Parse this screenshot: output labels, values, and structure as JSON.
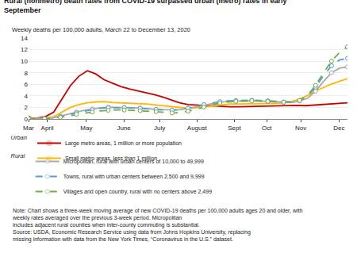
{
  "chart_data": {
    "type": "line",
    "title": "Rural (nonmetro) death rates from COVID-19 surpassed urban (metro) rates in early September",
    "subtitle": "Weekly deaths per 100,000 adults, March 22 to December 13, 2020",
    "annotations": [
      "Note: Chart shows a three-week moving average of new COVID-19 deaths per 100,000 adults ages 20 and older, with weekly rates averaged over the previous 3-week period. Micropolitan\nincludes adjacent rural counties when inter-county commuting is substantial.",
      "Source: USDA, Economic Research Service using data from Johns Hopkins University, replacing\nmissing information with data from the New York Times, “Coronavirus in the U.S.” dataset."
    ],
    "xlim": [
      0,
      37.5
    ],
    "xticks": [
      {
        "value": 0,
        "label": "Mar"
      },
      {
        "value": 2.2,
        "label": "April"
      },
      {
        "value": 6.8,
        "label": "May"
      },
      {
        "value": 11.2,
        "label": "June"
      },
      {
        "value": 15.4,
        "label": "July"
      },
      {
        "value": 19.8,
        "label": "August"
      },
      {
        "value": 24.2,
        "label": "Sept"
      },
      {
        "value": 28.0,
        "label": "Oct"
      },
      {
        "value": 32.0,
        "label": "Nov"
      },
      {
        "value": 36.5,
        "label": "Dec"
      }
    ],
    "ylim": [
      0,
      14
    ],
    "yticks": [
      0,
      2,
      4,
      6,
      8,
      10,
      12,
      14
    ],
    "grid": "y",
    "legend": "bottom",
    "series": [
      {
        "name": "Large metro areas, 1 million or more population",
        "group": "Urban",
        "color": "#CC0000",
        "line_style": "solid",
        "marker": "start",
        "x": [
          0,
          0.9868,
          1.9737,
          2.9605,
          3.9474,
          4.9342,
          5.9211,
          6.9079,
          7.8947,
          8.8816,
          9.8684,
          10.8553,
          11.8421,
          12.8289,
          13.8158,
          14.8026,
          15.7895,
          16.7763,
          17.7632,
          18.75,
          19.7368,
          20.7237,
          21.7105,
          22.6974,
          23.6842,
          24.6711,
          25.6579,
          26.6447,
          27.6316,
          28.6184,
          29.6053,
          30.5921,
          31.5789,
          32.5658,
          33.5526,
          34.5395,
          35.5263,
          36.5132,
          37.5
        ],
        "values": [
          0.05,
          0.15,
          0.4,
          1.2,
          3.5,
          5.8,
          7.4,
          8.35,
          7.8,
          6.8,
          6.2,
          5.6,
          5.2,
          4.9,
          4.6,
          4.2,
          3.8,
          3.3,
          2.8,
          2.5,
          2.4,
          2.3,
          2.2,
          2.2,
          2.1,
          2.1,
          2.15,
          2.2,
          2.25,
          2.3,
          2.35,
          2.35,
          2.35,
          2.3,
          2.4,
          2.5,
          2.6,
          2.7,
          2.8
        ]
      },
      {
        "name": "Small metro areas, less than 1 million",
        "group": "Urban",
        "color": "#FFB800",
        "line_style": "solid",
        "marker": "start",
        "x": [
          0,
          0.9868,
          1.9737,
          2.9605,
          3.9474,
          4.9342,
          5.9211,
          6.9079,
          7.8947,
          8.8816,
          9.8684,
          10.8553,
          11.8421,
          12.8289,
          13.8158,
          14.8026,
          15.7895,
          16.7763,
          17.7632,
          18.75,
          19.7368,
          20.7237,
          21.7105,
          22.6974,
          23.6842,
          24.6711,
          25.6579,
          26.6447,
          27.6316,
          28.6184,
          29.6053,
          30.5921,
          31.5789,
          32.5658,
          33.5526,
          34.5395,
          35.5263,
          36.5132,
          37.5
        ],
        "values": [
          0.0,
          0.05,
          0.15,
          0.4,
          1.2,
          2.0,
          2.5,
          2.8,
          2.95,
          3.0,
          2.85,
          2.75,
          2.7,
          2.65,
          2.6,
          2.45,
          2.3,
          2.1,
          1.9,
          1.85,
          1.95,
          2.1,
          2.3,
          2.5,
          2.6,
          2.6,
          2.6,
          2.65,
          2.65,
          2.7,
          2.75,
          2.9,
          3.3,
          3.9,
          4.7,
          5.4,
          6.0,
          6.5,
          7.0
        ]
      },
      {
        "name": "Micropolitan, rural with urban centers of 10,000 to 49,999",
        "group": "Rural",
        "color": "#AAAAAA",
        "line_style": "solid",
        "marker": "open-circle",
        "x": [
          0,
          0.9375,
          1.875,
          2.8125,
          3.75,
          4.6875,
          5.625,
          6.5625,
          7.5,
          8.4375,
          9.375,
          10.3125,
          11.25,
          12.1875,
          13.125,
          14.0625,
          15,
          15.9375,
          16.875,
          17.8125,
          18.75,
          19.6875,
          20.625,
          21.5625,
          22.5,
          23.4375,
          24.375,
          25.3125,
          26.25,
          27.1875,
          28.125,
          29.0625,
          30,
          30.9375,
          31.875,
          32.8125,
          33.75,
          34.6875,
          35.625,
          36.5625,
          37.5
        ],
        "values": [
          0.0,
          0.02,
          0.06,
          0.15,
          0.5,
          0.9,
          1.2,
          1.5,
          1.75,
          1.95,
          2.05,
          2.05,
          2.0,
          1.95,
          1.9,
          1.75,
          1.65,
          1.6,
          1.55,
          1.6,
          1.85,
          2.1,
          2.4,
          2.7,
          2.9,
          3.05,
          3.1,
          3.15,
          3.15,
          3.1,
          3.05,
          2.95,
          2.85,
          2.85,
          3.1,
          3.6,
          4.8,
          6.5,
          8.0,
          8.8,
          9.0
        ]
      },
      {
        "name": "Towns, rural with urban centers between 2,500 and 9,999",
        "group": "Rural",
        "color": "#5B9BD5",
        "line_style": "dashed",
        "marker": "open-circle",
        "x": [
          0,
          0.9375,
          1.875,
          2.8125,
          3.75,
          4.6875,
          5.625,
          6.5625,
          7.5,
          8.4375,
          9.375,
          10.3125,
          11.25,
          12.1875,
          13.125,
          14.0625,
          15,
          15.9375,
          16.875,
          17.8125,
          18.75,
          19.6875,
          20.625,
          21.5625,
          22.5,
          23.4375,
          24.375,
          25.3125,
          26.25,
          27.1875,
          28.125,
          29.0625,
          30,
          30.9375,
          31.875,
          32.8125,
          33.75,
          34.6875,
          35.625,
          36.5625,
          37.5
        ],
        "values": [
          0.0,
          0.02,
          0.05,
          0.12,
          0.4,
          0.75,
          1.05,
          1.35,
          1.6,
          1.85,
          1.95,
          2.0,
          1.95,
          1.9,
          1.85,
          1.75,
          1.65,
          1.55,
          1.5,
          1.6,
          1.85,
          2.15,
          2.5,
          2.8,
          3.0,
          3.15,
          3.2,
          3.25,
          3.25,
          3.2,
          3.15,
          3.05,
          2.95,
          2.95,
          3.2,
          4.0,
          5.5,
          7.5,
          9.2,
          10.2,
          10.5
        ]
      },
      {
        "name": "Villages and open country, rural with no centers above 2,499",
        "group": "Rural",
        "color": "#70AD47",
        "line_style": "dashed",
        "marker": "open-circle",
        "x": [
          0,
          0.9375,
          1.875,
          2.8125,
          3.75,
          4.6875,
          5.625,
          6.5625,
          7.5,
          8.4375,
          9.375,
          10.3125,
          11.25,
          12.1875,
          13.125,
          14.0625,
          15,
          15.9375,
          16.875,
          17.8125,
          18.75,
          19.6875,
          20.625,
          21.5625,
          22.5,
          23.4375,
          24.375,
          25.3125,
          26.25,
          27.1875,
          28.125,
          29.0625,
          30,
          30.9375,
          31.875,
          32.8125,
          33.75,
          34.6875,
          35.625,
          36.5625,
          37.5
        ],
        "values": [
          0.0,
          0.01,
          0.04,
          0.1,
          0.3,
          0.55,
          0.8,
          1.0,
          1.2,
          1.4,
          1.5,
          1.55,
          1.55,
          1.5,
          1.45,
          1.35,
          1.25,
          1.15,
          1.05,
          1.1,
          1.35,
          1.65,
          2.05,
          2.45,
          2.75,
          2.95,
          3.05,
          3.15,
          3.15,
          3.1,
          3.05,
          2.95,
          2.9,
          2.9,
          3.2,
          4.1,
          5.8,
          8.0,
          10.0,
          11.5,
          12.5
        ]
      }
    ]
  }
}
